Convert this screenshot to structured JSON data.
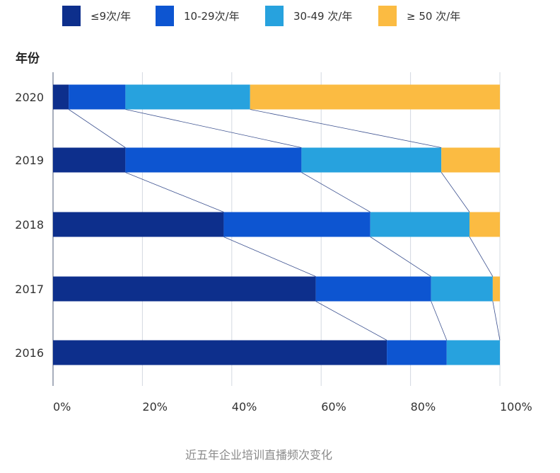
{
  "chart_data": {
    "type": "bar",
    "orientation": "horizontal",
    "stacked": true,
    "normalized": true,
    "title": "近五年企业培训直播频次变化",
    "ylabel": "年份",
    "xlabel": "",
    "categories": [
      "2020",
      "2019",
      "2018",
      "2017",
      "2016"
    ],
    "xlim": [
      0,
      100
    ],
    "xticks": [
      "0%",
      "20%",
      "40%",
      "60%",
      "80%",
      "100%"
    ],
    "grid": true,
    "legend_position": "top",
    "connector_lines": true,
    "series": [
      {
        "name": "≤9次/年",
        "color": "#0d2f8c",
        "values": [
          3.5,
          16.2,
          38.2,
          58.8,
          74.7
        ]
      },
      {
        "name": "10-29次/年",
        "color": "#0d55d1",
        "values": [
          12.7,
          39.4,
          32.8,
          25.8,
          13.4
        ]
      },
      {
        "name": "30-49 次/年",
        "color": "#27a2de",
        "values": [
          27.9,
          31.3,
          22.2,
          13.8,
          11.9
        ]
      },
      {
        "name": "≥ 50 次/年",
        "color": "#fbbb42",
        "values": [
          55.9,
          13.1,
          6.8,
          1.6,
          0
        ]
      }
    ]
  }
}
